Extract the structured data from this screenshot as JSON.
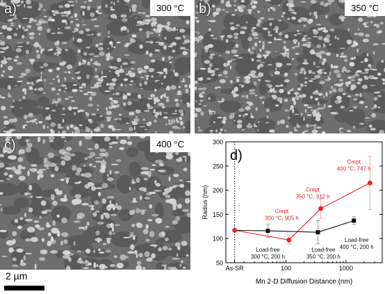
{
  "panels": [
    {
      "label": "a)",
      "temp": "300 °C"
    },
    {
      "label": "b)",
      "temp": "350 °C"
    },
    {
      "label": "c)",
      "temp": "400 °C"
    }
  ],
  "scalebar": {
    "label": "2 µm"
  },
  "chart_data": {
    "type": "scatter",
    "panel_label": "d)",
    "xlabel": "Mn 2-D Diffusion Distance (nm)",
    "ylabel": "Radius (nm)",
    "x_scale": "log",
    "xlim": [
      10,
      4000
    ],
    "ylim": [
      50,
      300
    ],
    "x_ticks": [
      {
        "value": 100,
        "label": "100"
      },
      {
        "value": 1000,
        "label": "1000"
      }
    ],
    "x_category_tick": {
      "value": 14,
      "label": "As-SR"
    },
    "y_ticks": [
      50,
      100,
      150,
      200,
      250,
      300
    ],
    "reference_line_x": 14,
    "grid": false,
    "series": [
      {
        "name": "Crept",
        "color": "#e8202a",
        "marker": "circle",
        "points": [
          {
            "x": 14,
            "y": 117,
            "err": 0
          },
          {
            "x": 112,
            "y": 97,
            "err": 8
          },
          {
            "x": 380,
            "y": 162,
            "err": 20
          },
          {
            "x": 2500,
            "y": 215,
            "err": 55
          }
        ]
      },
      {
        "name": "Load-free",
        "color": "#111111",
        "marker": "square",
        "points": [
          {
            "x": 14,
            "y": 117,
            "err": 0
          },
          {
            "x": 50,
            "y": 116,
            "err": 14
          },
          {
            "x": 340,
            "y": 113,
            "err": 24
          },
          {
            "x": 1350,
            "y": 137,
            "err": 8
          }
        ]
      }
    ],
    "annotations": [
      {
        "lines": [
          "Crept",
          "400 °C, 747 h"
        ],
        "color": "#e8202a",
        "x": 1350,
        "y": 255
      },
      {
        "lines": [
          "Crept",
          "350 °C, 312 h"
        ],
        "color": "#e8202a",
        "x": 280,
        "y": 197
      },
      {
        "lines": [
          "Crept",
          "300 °C, 905 h"
        ],
        "color": "#e8202a",
        "x": 85,
        "y": 153
      },
      {
        "lines": [
          "Load-free",
          "300 °C, 200 h"
        ],
        "color": "#111111",
        "x": 50,
        "y": 73
      },
      {
        "lines": [
          "Load-free",
          "350 °C, 200 h"
        ],
        "color": "#111111",
        "x": 420,
        "y": 73
      },
      {
        "lines": [
          "Load-free",
          "400 °C, 200 h"
        ],
        "color": "#111111",
        "x": 1500,
        "y": 93
      }
    ]
  }
}
